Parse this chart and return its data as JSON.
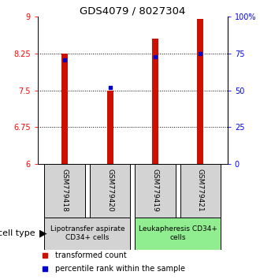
{
  "title": "GDS4079 / 8027304",
  "samples": [
    "GSM779418",
    "GSM779420",
    "GSM779419",
    "GSM779421"
  ],
  "red_values": [
    8.25,
    7.5,
    8.55,
    8.95
  ],
  "blue_values": [
    8.12,
    7.56,
    8.18,
    8.25
  ],
  "ylim": [
    6,
    9
  ],
  "yticks_left": [
    6,
    6.75,
    7.5,
    8.25,
    9
  ],
  "ytick_labels_left": [
    "6",
    "6.75",
    "7.5",
    "8.25",
    "9"
  ],
  "yticks_right_pct": [
    0,
    25,
    50,
    75,
    100
  ],
  "ytick_labels_right": [
    "0",
    "25",
    "50",
    "75",
    "100%"
  ],
  "gridlines": [
    6.75,
    7.5,
    8.25
  ],
  "groups": [
    {
      "label": "Lipotransfer aspirate\nCD34+ cells",
      "samples": [
        0,
        1
      ],
      "color": "#d3d3d3"
    },
    {
      "label": "Leukapheresis CD34+\ncells",
      "samples": [
        2,
        3
      ],
      "color": "#90ee90"
    }
  ],
  "cell_type_label": "cell type",
  "legend_red": "transformed count",
  "legend_blue": "percentile rank within the sample",
  "bar_color": "#cc1100",
  "dot_color": "#0000cc",
  "bar_width": 0.14,
  "title_fontsize": 9.5,
  "tick_fontsize": 7,
  "label_fontsize": 6.5,
  "sample_label_fontsize": 6.5,
  "legend_fontsize": 7,
  "cell_type_fontsize": 8
}
